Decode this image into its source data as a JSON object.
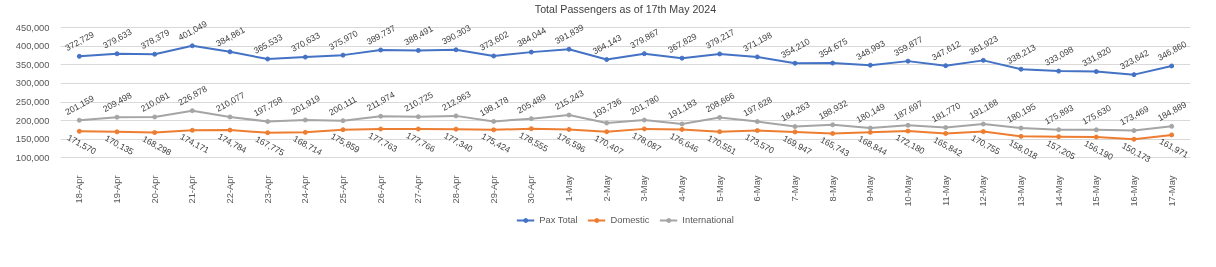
{
  "chart_data": {
    "type": "line",
    "title": "Total Passengers as of 17th May 2024",
    "categories": [
      "18-Apr",
      "19-Apr",
      "20-Apr",
      "21-Apr",
      "22-Apr",
      "23-Apr",
      "24-Apr",
      "25-Apr",
      "26-Apr",
      "27-Apr",
      "28-Apr",
      "29-Apr",
      "30-Apr",
      "1-May",
      "2-May",
      "3-May",
      "4-May",
      "5-May",
      "6-May",
      "7-May",
      "8-May",
      "9-May",
      "10-May",
      "11-May",
      "12-May",
      "13-May",
      "14-May",
      "15-May",
      "16-May",
      "17-May"
    ],
    "series": [
      {
        "name": "Pax Total",
        "color": "#4472c4",
        "values": [
          372729,
          379633,
          378379,
          401049,
          384861,
          365533,
          370633,
          375970,
          389737,
          388491,
          390303,
          373602,
          384044,
          391839,
          364143,
          379867,
          367829,
          379217,
          371198,
          354210,
          354675,
          348993,
          359877,
          347612,
          361923,
          338213,
          333098,
          331820,
          323642,
          346860
        ],
        "value_labels": [
          "372,729",
          "379,633",
          "378,379",
          "401,049",
          "384,861",
          "365,533",
          "370,633",
          "375,970",
          "389,737",
          "388,491",
          "390,303",
          "373,602",
          "384,044",
          "391,839",
          "364,143",
          "379,867",
          "367,829",
          "379,217",
          "371,198",
          "354,210",
          "354,675",
          "348,993",
          "359,877",
          "347,612",
          "361,923",
          "338,213",
          "333,098",
          "331,820",
          "323,642",
          "346,860"
        ]
      },
      {
        "name": "Domestic",
        "color": "#ed7d31",
        "values": [
          171570,
          170135,
          168298,
          174171,
          174784,
          167775,
          168714,
          175859,
          177763,
          177766,
          177340,
          175424,
          178555,
          176596,
          170407,
          178087,
          176646,
          170551,
          173570,
          169947,
          165743,
          168844,
          172180,
          165842,
          170755,
          158018,
          157205,
          156190,
          150173,
          161971
        ],
        "value_labels": [
          "171,570",
          "170,135",
          "168,298",
          "174,171",
          "174,784",
          "167,775",
          "168,714",
          "175,859",
          "177,763",
          "177,766",
          "177,340",
          "175,424",
          "178,555",
          "176,596",
          "170,407",
          "178,087",
          "176,646",
          "170,551",
          "173,570",
          "169,947",
          "165,743",
          "168,844",
          "172,180",
          "165,842",
          "170,755",
          "158,018",
          "157,205",
          "156,190",
          "150,173",
          "161,971"
        ]
      },
      {
        "name": "International",
        "color": "#a5a5a5",
        "values": [
          201159,
          209498,
          210081,
          226878,
          210077,
          197758,
          201919,
          200111,
          211974,
          210725,
          212963,
          198178,
          205489,
          215243,
          193736,
          201780,
          191183,
          208666,
          197628,
          184263,
          188932,
          180149,
          187697,
          181770,
          191168,
          180195,
          175893,
          175630,
          173469,
          184889
        ],
        "value_labels": [
          "201,159",
          "209,498",
          "210,081",
          "226,878",
          "210,077",
          "197,758",
          "201,919",
          "200,111",
          "211,974",
          "210,725",
          "212,963",
          "198,178",
          "205,489",
          "215,243",
          "193,736",
          "201,780",
          "191,183",
          "208,666",
          "197,628",
          "184,263",
          "188,932",
          "180,149",
          "187,697",
          "181,770",
          "191,168",
          "180,195",
          "175,893",
          "175,630",
          "173,469",
          "184,889"
        ]
      }
    ],
    "ylim": [
      100000,
      450000
    ],
    "yticks": [
      {
        "value": 100000,
        "label": "100,000"
      },
      {
        "value": 150000,
        "label": "150,000"
      },
      {
        "value": 200000,
        "label": "200,000"
      },
      {
        "value": 250000,
        "label": "250,000"
      },
      {
        "value": 300000,
        "label": "300,000"
      },
      {
        "value": 350000,
        "label": "350,000"
      },
      {
        "value": 400000,
        "label": "400,000"
      },
      {
        "value": 450000,
        "label": "450,000"
      }
    ],
    "grid": "y",
    "legend": "bottom",
    "marker": "circle",
    "line_style": "solid"
  }
}
